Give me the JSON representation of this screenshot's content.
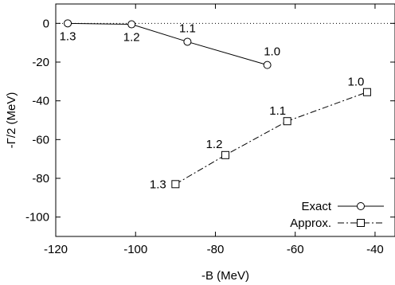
{
  "chart_data": {
    "type": "line",
    "title": "",
    "xlabel": "-B (MeV)",
    "ylabel": "-Γ/2 (MeV)",
    "xlim": [
      -120,
      -35
    ],
    "ylim": [
      -110,
      10
    ],
    "xticks": [
      -120,
      -100,
      -80,
      -60,
      -40
    ],
    "yticks": [
      0,
      -20,
      -40,
      -60,
      -80,
      -100
    ],
    "grid": false,
    "zero_line": "dotted",
    "legend_position": "bottom-right",
    "series": [
      {
        "name": "Exact",
        "marker": "circle",
        "line": "solid",
        "x": [
          -117,
          -101,
          -87,
          -67
        ],
        "y": [
          0,
          -0.5,
          -9.5,
          -21.5
        ],
        "labels": [
          "1.3",
          "1.2",
          "1.1",
          "1.0"
        ]
      },
      {
        "name": "Approx.",
        "marker": "square",
        "line": "dash-dot",
        "x": [
          -90,
          -77.5,
          -62,
          -42
        ],
        "y": [
          -83,
          -68,
          -50.5,
          -35.5
        ],
        "labels": [
          "1.3",
          "1.2",
          "1.1",
          "1.0"
        ]
      }
    ]
  }
}
